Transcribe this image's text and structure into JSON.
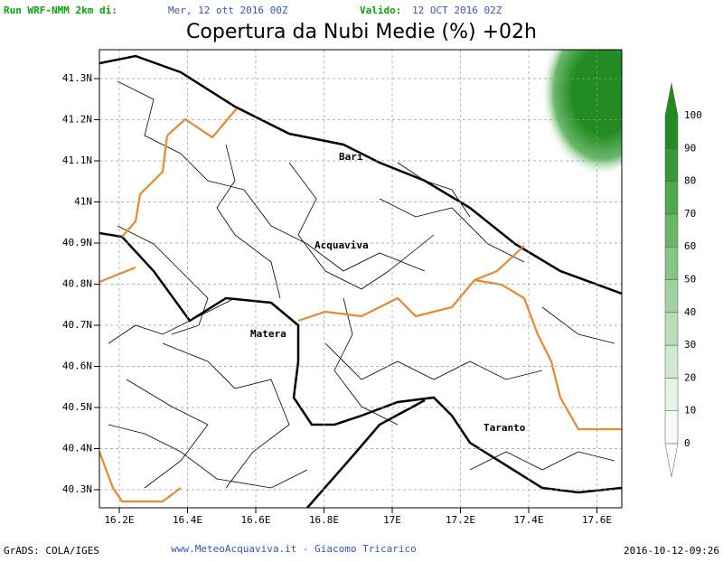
{
  "header": {
    "run_label": "Run WRF-NMM 2km di:",
    "run_date": "Mer, 12 ott 2016 00Z",
    "valid_label": "Valido:",
    "valid_date": "12 OCT 2016 02Z",
    "title": "Copertura da Nubi Medie (%) +02h"
  },
  "map": {
    "lat_labels": [
      "41.3N",
      "41.2N",
      "41.1N",
      "41N",
      "40.9N",
      "40.8N",
      "40.7N",
      "40.6N",
      "40.5N",
      "40.4N",
      "40.3N"
    ],
    "lon_labels": [
      "16.2E",
      "16.4E",
      "16.6E",
      "16.8E",
      "17E",
      "17.2E",
      "17.4E",
      "17.6E"
    ],
    "places": [
      "Bari",
      "Acquaviva",
      "Matera",
      "Taranto"
    ]
  },
  "colorbar": {
    "labels": [
      0,
      10,
      20,
      30,
      40,
      50,
      60,
      70,
      80,
      90,
      100
    ],
    "colors": [
      "#f5fbf5",
      "#e4f3e4",
      "#cfe9cf",
      "#b8dfb8",
      "#9ed29e",
      "#84c584",
      "#68b768",
      "#4ea84e",
      "#369936",
      "#228b22"
    ]
  },
  "footer": {
    "left": "GrADS: COLA/IGES",
    "center": "www.MeteoAcquaviva.it - Giacomo Tricarico",
    "right": "2016-10-12-09:26"
  }
}
